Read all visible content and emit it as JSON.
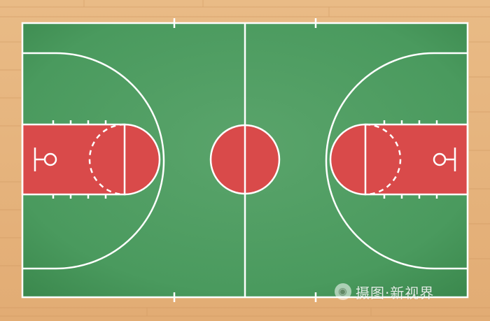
{
  "colors": {
    "floor_base": "#e7b57f",
    "floor_grain": "#d39b63",
    "court_green": "#3f8f53",
    "court_green_light": "#5aa46b",
    "paint_red": "#d94a4a",
    "line_white": "#ffffff"
  },
  "icons": {
    "watermark_logo": "camera-aperture-icon"
  },
  "watermark": {
    "text": "摄图·新视界"
  }
}
